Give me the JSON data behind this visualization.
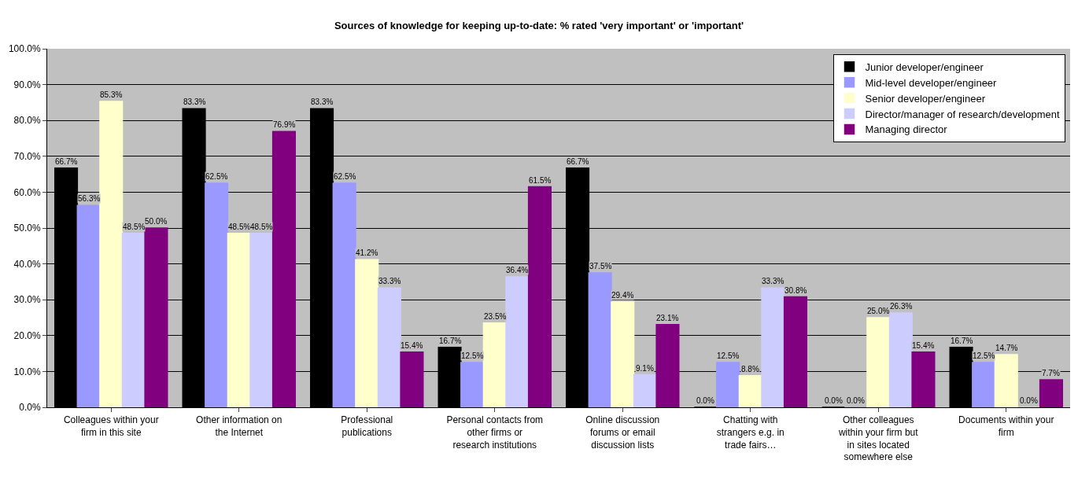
{
  "chart_data": {
    "type": "bar",
    "title": "Sources of knowledge for keeping up-to-date: % rated 'very important' or 'important'",
    "categories": [
      "Colleagues within your firm in this site",
      "Other information on the Internet",
      "Professional publications",
      "Personal contacts from other firms or research institutions",
      "Online discussion forums or email discussion lists",
      "Chatting with strangers e.g. in trade fairs…",
      "Other colleagues within your firm but in sites located somewhere else",
      "Documents within your firm"
    ],
    "series": [
      {
        "name": "Junior developer/engineer",
        "color": "#000000",
        "values": [
          66.7,
          83.3,
          83.3,
          16.7,
          66.7,
          0.0,
          0.0,
          16.7
        ],
        "value_labels": [
          "66.7%",
          "83.3%",
          "83.3%",
          "16.7%",
          "66.7%",
          "0.0%",
          "0.0%",
          "16.7%"
        ]
      },
      {
        "name": "Mid-level developer/engineer",
        "color": "#9999ff",
        "values": [
          56.3,
          62.5,
          62.5,
          12.5,
          37.5,
          12.5,
          0.0,
          12.5
        ],
        "value_labels": [
          "56.3%",
          "62.5%",
          "62.5%",
          "12.5%",
          "37.5%",
          "12.5%",
          "0.0%",
          "12.5%"
        ]
      },
      {
        "name": "Senior developer/engineer",
        "color": "#ffffcc",
        "values": [
          85.3,
          48.5,
          41.2,
          23.5,
          29.4,
          8.8,
          25.0,
          14.7
        ],
        "value_labels": [
          "85.3%",
          "48.5%",
          "41.2%",
          "23.5%",
          "29.4%",
          "8.8%",
          "25.0%",
          "14.7%"
        ]
      },
      {
        "name": "Director/manager of research/development",
        "color": "#ccccff",
        "values": [
          48.5,
          48.5,
          33.3,
          36.4,
          9.1,
          33.3,
          26.3,
          0.0
        ],
        "value_labels": [
          "48.5%",
          "48.5%",
          "33.3%",
          "36.4%",
          "9.1%",
          "33.3%",
          "26.3%",
          "0.0%"
        ]
      },
      {
        "name": "Managing director",
        "color": "#800080",
        "values": [
          50.0,
          76.9,
          15.4,
          61.5,
          23.1,
          30.8,
          15.4,
          7.7
        ],
        "value_labels": [
          "50.0%",
          "76.9%",
          "15.4%",
          "61.5%",
          "23.1%",
          "30.8%",
          "15.4%",
          "7.7%"
        ]
      }
    ],
    "ylim": [
      0,
      100
    ],
    "yticks": [
      {
        "value": 0,
        "label": "0.0%"
      },
      {
        "value": 10,
        "label": "10.0%"
      },
      {
        "value": 20,
        "label": "20.0%"
      },
      {
        "value": 30,
        "label": "30.0%"
      },
      {
        "value": 40,
        "label": "40.0%"
      },
      {
        "value": 50,
        "label": "50.0%"
      },
      {
        "value": 60,
        "label": "60.0%"
      },
      {
        "value": 70,
        "label": "70.0%"
      },
      {
        "value": 80,
        "label": "80.0%"
      },
      {
        "value": 90,
        "label": "90.0%"
      },
      {
        "value": 100,
        "label": "100.0%"
      }
    ],
    "grid": "y",
    "legend": "top right"
  }
}
